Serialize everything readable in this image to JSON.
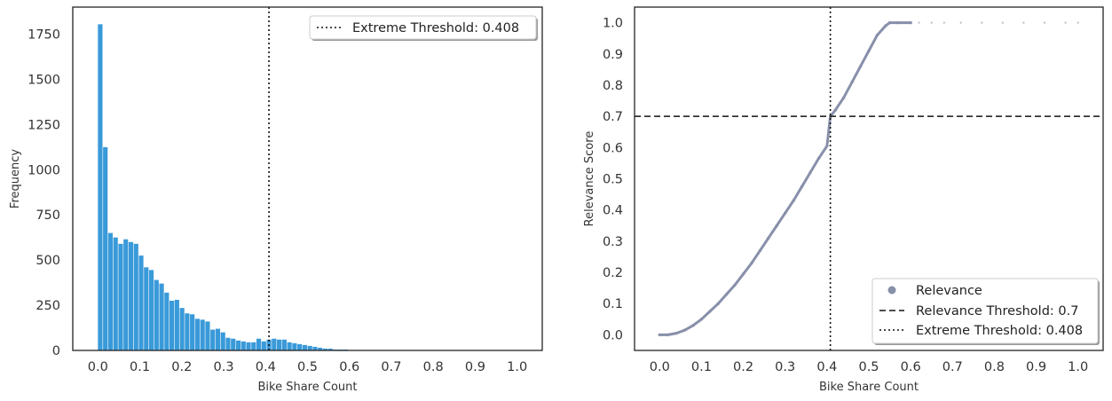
{
  "chart_data": [
    {
      "type": "bar",
      "xlabel": "Bike Share Count",
      "ylabel": "Frequency",
      "xlim": [
        -0.06,
        1.06
      ],
      "ylim": [
        0,
        1900
      ],
      "x_ticks": [
        "0.0",
        "0.1",
        "0.2",
        "0.3",
        "0.4",
        "0.5",
        "0.6",
        "0.7",
        "0.8",
        "0.9",
        "1.0"
      ],
      "y_ticks": [
        "0",
        "250",
        "500",
        "750",
        "1000",
        "1250",
        "1500",
        "1750"
      ],
      "bar_color": "#3a9ad9",
      "bin_width": 0.0122,
      "bin_starts": [
        0.0,
        0.0122,
        0.0244,
        0.0366,
        0.0488,
        0.061,
        0.0732,
        0.0854,
        0.0976,
        0.1098,
        0.122,
        0.1342,
        0.1464,
        0.1586,
        0.1708,
        0.183,
        0.1952,
        0.2074,
        0.2196,
        0.2318,
        0.244,
        0.2562,
        0.2684,
        0.2806,
        0.2928,
        0.305,
        0.3172,
        0.3294,
        0.3416,
        0.3538,
        0.366,
        0.3782,
        0.3904,
        0.4026,
        0.4148,
        0.427,
        0.4392,
        0.4514,
        0.4636,
        0.4758,
        0.488,
        0.5002,
        0.5124,
        0.5246,
        0.5368,
        0.549,
        0.5612,
        0.5734,
        0.5856
      ],
      "values": [
        1805,
        1125,
        650,
        625,
        590,
        615,
        600,
        590,
        525,
        460,
        445,
        390,
        370,
        320,
        275,
        280,
        235,
        205,
        200,
        175,
        170,
        160,
        115,
        120,
        100,
        70,
        65,
        55,
        50,
        45,
        45,
        65,
        50,
        60,
        65,
        60,
        60,
        45,
        40,
        35,
        30,
        25,
        20,
        15,
        10,
        10,
        5,
        5,
        5
      ],
      "threshold": {
        "x": 0.408,
        "style": "dotted",
        "color": "#111111"
      },
      "legend": {
        "position": "upper right",
        "entries": [
          {
            "label": "Extreme Threshold: 0.408",
            "style": "dotted"
          }
        ]
      }
    },
    {
      "type": "scatter",
      "xlabel": "Bike Share Count",
      "ylabel": "Relevance Score",
      "xlim": [
        -0.06,
        1.06
      ],
      "ylim": [
        -0.05,
        1.05
      ],
      "x_ticks": [
        "0.0",
        "0.1",
        "0.2",
        "0.3",
        "0.4",
        "0.5",
        "0.6",
        "0.7",
        "0.8",
        "0.9",
        "1.0"
      ],
      "y_ticks": [
        "0.0",
        "0.1",
        "0.2",
        "0.3",
        "0.4",
        "0.5",
        "0.6",
        "0.7",
        "0.8",
        "0.9",
        "1.0"
      ],
      "point_color": "#8890aa",
      "x": [
        0.0,
        0.02,
        0.04,
        0.06,
        0.08,
        0.1,
        0.12,
        0.14,
        0.16,
        0.18,
        0.2,
        0.22,
        0.24,
        0.26,
        0.28,
        0.3,
        0.32,
        0.34,
        0.36,
        0.38,
        0.4,
        0.408,
        0.42,
        0.44,
        0.46,
        0.48,
        0.5,
        0.52,
        0.54,
        0.55,
        0.57,
        0.6,
        0.62,
        0.65,
        0.68,
        0.72,
        0.77,
        0.82,
        0.87,
        0.92,
        0.97,
        1.0
      ],
      "y": [
        0.0,
        0.0,
        0.005,
        0.015,
        0.03,
        0.05,
        0.075,
        0.1,
        0.13,
        0.16,
        0.195,
        0.23,
        0.27,
        0.31,
        0.35,
        0.39,
        0.43,
        0.475,
        0.52,
        0.565,
        0.605,
        0.7,
        0.72,
        0.76,
        0.81,
        0.86,
        0.91,
        0.96,
        0.99,
        1.0,
        1.0,
        1.0,
        1.0,
        1.0,
        1.0,
        1.0,
        1.0,
        1.0,
        1.0,
        1.0,
        1.0,
        1.0
      ],
      "relevance_threshold": {
        "y": 0.7,
        "style": "dashed",
        "color": "#111111"
      },
      "extreme_threshold": {
        "x": 0.408,
        "style": "dotted",
        "color": "#111111"
      },
      "legend": {
        "position": "lower right",
        "entries": [
          {
            "label": "Relevance",
            "style": "marker"
          },
          {
            "label": "Relevance Threshold: 0.7",
            "style": "dashed"
          },
          {
            "label": "Extreme Threshold: 0.408",
            "style": "dotted"
          }
        ]
      }
    }
  ]
}
